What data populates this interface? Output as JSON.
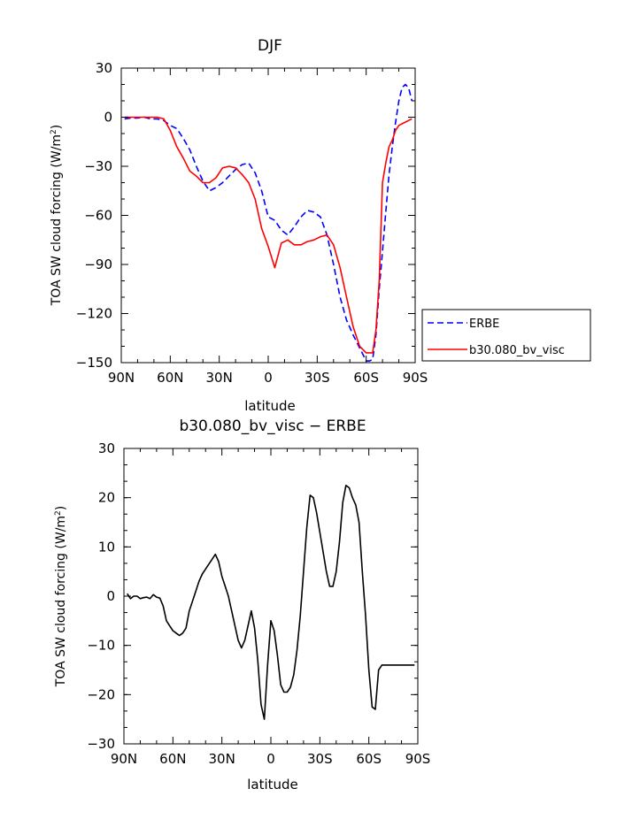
{
  "chart_data": [
    {
      "type": "line",
      "title": "DJF",
      "xlabel": "latitude",
      "ylabel": "TOA SW cloud forcing (W/m",
      "ylabel_superscript": "2",
      "ylabel_close": ")",
      "xlim": [
        90,
        -90
      ],
      "ylim": [
        -150,
        30
      ],
      "xticks": [
        90,
        60,
        30,
        0,
        -30,
        -60,
        -90
      ],
      "xtick_labels": [
        "90N",
        "60N",
        "30N",
        "0",
        "30S",
        "60S",
        "90S"
      ],
      "yticks": [
        30,
        0,
        -30,
        -60,
        -90,
        -120,
        -150
      ],
      "ytick_labels": [
        "30",
        "0",
        "−30",
        "−60",
        "−90",
        "−120",
        "−150"
      ],
      "legend": "outside-right",
      "series": [
        {
          "name": "ERBE",
          "color": "#0000ff",
          "dash": "dashed",
          "x": [
            88,
            84,
            80,
            76,
            72,
            68,
            64,
            60,
            56,
            52,
            48,
            44,
            40,
            36,
            32,
            28,
            24,
            20,
            16,
            12,
            8,
            4,
            0,
            -4,
            -8,
            -12,
            -16,
            -20,
            -24,
            -28,
            -32,
            -36,
            -40,
            -44,
            -48,
            -52,
            -56,
            -60,
            -62,
            -64,
            -66,
            -68,
            -70,
            -72,
            -74,
            -76,
            -78,
            -80,
            -82,
            -84,
            -86,
            -88
          ],
          "y": [
            -1,
            -0.5,
            -0.5,
            0,
            -1,
            -1,
            -2,
            -5,
            -7,
            -13,
            -20,
            -30,
            -39,
            -45,
            -43,
            -40,
            -36,
            -32,
            -29,
            -28,
            -34,
            -45,
            -61,
            -63,
            -69,
            -72,
            -67,
            -61,
            -57,
            -58,
            -61,
            -72,
            -90,
            -110,
            -124,
            -133,
            -141,
            -149,
            -149,
            -148,
            -133,
            -105,
            -82,
            -58,
            -35,
            -18,
            -3,
            10,
            18,
            20,
            18,
            10
          ]
        },
        {
          "name": "b30.080_bv_visc",
          "color": "#ff0000",
          "dash": "solid",
          "x": [
            88,
            84,
            80,
            76,
            72,
            68,
            64,
            60,
            56,
            52,
            48,
            44,
            40,
            36,
            32,
            28,
            24,
            20,
            16,
            12,
            8,
            4,
            0,
            -4,
            -8,
            -12,
            -16,
            -20,
            -24,
            -28,
            -32,
            -36,
            -40,
            -44,
            -48,
            -52,
            -56,
            -60,
            -62,
            -64,
            -66,
            -68,
            -70,
            -72,
            -74,
            -76,
            -78,
            -80,
            -82,
            -84,
            -86,
            -88
          ],
          "y": [
            0,
            0,
            0,
            0,
            0,
            0,
            -1,
            -8,
            -18,
            -25,
            -33,
            -36,
            -40,
            -40,
            -37,
            -31,
            -30,
            -31,
            -35,
            -40,
            -50,
            -68,
            -79,
            -92,
            -77,
            -75,
            -78,
            -78,
            -76,
            -75,
            -73,
            -72,
            -78,
            -92,
            -110,
            -128,
            -140,
            -144,
            -144,
            -144,
            -130,
            -100,
            -40,
            -28,
            -18,
            -14,
            -8,
            -5,
            -4,
            -3,
            -2,
            -1
          ]
        }
      ]
    },
    {
      "type": "line",
      "title": "b30.080_bv_visc − ERBE",
      "xlabel": "latitude",
      "ylabel": "TOA SW cloud forcing (W/m",
      "ylabel_superscript": "2",
      "ylabel_close": ")",
      "xlim": [
        90,
        -90
      ],
      "ylim": [
        -30,
        30
      ],
      "xticks": [
        90,
        60,
        30,
        0,
        -30,
        -60,
        -90
      ],
      "xtick_labels": [
        "90N",
        "60N",
        "30N",
        "0",
        "30S",
        "60S",
        "90S"
      ],
      "yticks": [
        30,
        20,
        10,
        0,
        -10,
        -20,
        -30
      ],
      "ytick_labels": [
        "30",
        "20",
        "10",
        "0",
        "−10",
        "−20",
        "−30"
      ],
      "series": [
        {
          "color": "#000000",
          "dash": "solid",
          "x": [
            88,
            86,
            84,
            82,
            80,
            78,
            76,
            74,
            72,
            70,
            68,
            66,
            64,
            62,
            60,
            58,
            56,
            54,
            52,
            50,
            48,
            46,
            44,
            42,
            40,
            38,
            36,
            34,
            32,
            30,
            28,
            26,
            24,
            22,
            20,
            18,
            16,
            14,
            12,
            10,
            8,
            6,
            4,
            2,
            0,
            -2,
            -4,
            -6,
            -8,
            -10,
            -12,
            -14,
            -16,
            -18,
            -20,
            -22,
            -24,
            -26,
            -28,
            -30,
            -32,
            -34,
            -36,
            -38,
            -40,
            -42,
            -44,
            -46,
            -48,
            -50,
            -52,
            -54,
            -56,
            -58,
            -60,
            -62,
            -64,
            -66,
            -68,
            -70,
            -72,
            -74,
            -76,
            -78,
            -80,
            -82,
            -84,
            -86,
            -88
          ],
          "y": [
            0.5,
            -0.5,
            0,
            0,
            -0.5,
            -0.3,
            -0.2,
            -0.5,
            0.3,
            -0.2,
            -0.4,
            -2,
            -5,
            -6,
            -7,
            -7.5,
            -8,
            -7.5,
            -6.5,
            -3,
            -1,
            1,
            3,
            4.5,
            5.5,
            6.5,
            7.5,
            8.5,
            7,
            4,
            2,
            0,
            -3,
            -6,
            -9,
            -10.5,
            -9,
            -6,
            -3,
            -6.5,
            -13,
            -22,
            -25,
            -14,
            -5,
            -7,
            -12,
            -18,
            -19.5,
            -19.5,
            -18.5,
            -16,
            -11,
            -4,
            5,
            14,
            20.5,
            20,
            17,
            13,
            9,
            5,
            2,
            2,
            5,
            11,
            19,
            22.5,
            22,
            20,
            18.5,
            15,
            5,
            -4,
            -15,
            -22.5,
            -23,
            -15,
            -14,
            -14,
            -14,
            -14,
            -14,
            -14,
            -14,
            -14,
            -14,
            -14,
            -14
          ]
        }
      ]
    }
  ]
}
